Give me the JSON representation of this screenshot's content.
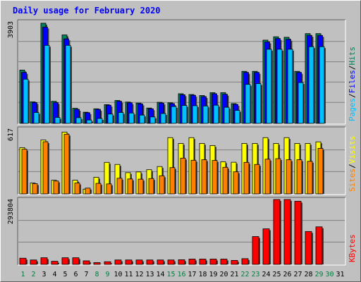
{
  "title": "Daily usage for February 2020",
  "colors": {
    "title": "#0000ff",
    "background": "#c0c0c0",
    "panel": "#c0c0c0",
    "grid": "#808080",
    "hits": "#00805c",
    "files": "#0000ff",
    "pages": "#00c0ff",
    "visits": "#ffff00",
    "sites": "#ff8000",
    "kbytes": "#ff0000",
    "weekday_label": "#000000",
    "weekend_label": "#008040"
  },
  "chart_data": [
    {
      "type": "bar",
      "panel": "hits-files-pages",
      "y_label_max": "3903",
      "legend": [
        {
          "name": "Pages",
          "color": "#00c0ff"
        },
        {
          "name": "/",
          "color": "#000000"
        },
        {
          "name": "Files",
          "color": "#0000ff"
        },
        {
          "name": "/",
          "color": "#000000"
        },
        {
          "name": "Hits",
          "color": "#00805c"
        }
      ],
      "ylim": [
        0,
        3903
      ],
      "x": [
        1,
        2,
        3,
        4,
        5,
        6,
        7,
        8,
        9,
        10,
        11,
        12,
        13,
        14,
        15,
        16,
        17,
        18,
        19,
        20,
        21,
        22,
        23,
        24,
        25,
        26,
        27,
        28,
        29
      ],
      "series": [
        {
          "name": "Hits",
          "values": [
            2050,
            830,
            3850,
            850,
            3400,
            580,
            430,
            560,
            720,
            880,
            820,
            780,
            590,
            810,
            790,
            1140,
            1110,
            1070,
            1180,
            1180,
            760,
            2000,
            2000,
            3200,
            3330,
            3310,
            2000,
            3450,
            3450
          ]
        },
        {
          "name": "Files",
          "values": [
            1960,
            800,
            3700,
            800,
            3250,
            540,
            410,
            540,
            700,
            850,
            790,
            750,
            560,
            780,
            760,
            1100,
            1080,
            1030,
            1140,
            1120,
            730,
            1960,
            1960,
            3130,
            3260,
            3230,
            1960,
            3380,
            3380
          ]
        },
        {
          "name": "Pages",
          "values": [
            1700,
            420,
            3000,
            230,
            3000,
            220,
            130,
            190,
            360,
            420,
            400,
            320,
            250,
            380,
            650,
            690,
            680,
            670,
            700,
            620,
            500,
            1500,
            1530,
            2850,
            2850,
            2850,
            1570,
            2950,
            2950
          ]
        }
      ]
    },
    {
      "type": "bar",
      "panel": "visits-sites",
      "y_label_max": "617",
      "legend": [
        {
          "name": "Sites",
          "color": "#ff8000"
        },
        {
          "name": "/",
          "color": "#000000"
        },
        {
          "name": "Visits",
          "color": "#ffff00"
        }
      ],
      "ylim": [
        0,
        617
      ],
      "x": [
        1,
        2,
        3,
        4,
        5,
        6,
        7,
        8,
        9,
        10,
        11,
        12,
        13,
        14,
        15,
        16,
        17,
        18,
        19,
        20,
        21,
        22,
        23,
        24,
        25,
        26,
        27,
        28,
        29
      ],
      "series": [
        {
          "name": "Visits",
          "values": [
            440,
            103,
            512,
            130,
            588,
            130,
            45,
            158,
            300,
            280,
            202,
            209,
            230,
            260,
            535,
            480,
            535,
            480,
            460,
            306,
            301,
            480,
            480,
            535,
            480,
            535,
            480,
            480,
            495
          ]
        },
        {
          "name": "Sites",
          "values": [
            425,
            97,
            496,
            122,
            568,
            103,
            55,
            100,
            95,
            149,
            142,
            140,
            146,
            172,
            250,
            340,
            320,
            325,
            318,
            253,
            210,
            300,
            280,
            330,
            335,
            325,
            325,
            310,
            433
          ]
        }
      ]
    },
    {
      "type": "bar",
      "panel": "kbytes",
      "y_label_max": "293804",
      "legend": [
        {
          "name": "KBytes",
          "color": "#ff0000"
        }
      ],
      "ylim": [
        0,
        293804
      ],
      "x": [
        1,
        2,
        3,
        4,
        5,
        6,
        7,
        8,
        9,
        10,
        11,
        12,
        13,
        14,
        15,
        16,
        17,
        18,
        19,
        20,
        21,
        22,
        23,
        24,
        25,
        26,
        27,
        28,
        29
      ],
      "series": [
        {
          "name": "KBytes",
          "values": [
            28000,
            20000,
            30000,
            14000,
            30000,
            30000,
            16000,
            8000,
            12000,
            20000,
            20000,
            20000,
            20000,
            20000,
            20000,
            21000,
            24000,
            24000,
            24000,
            24000,
            18000,
            26000,
            126000,
            161000,
            293804,
            293804,
            286000,
            149000,
            170000
          ]
        }
      ]
    }
  ],
  "x_axis": {
    "labels": [
      "1",
      "2",
      "3",
      "4",
      "5",
      "6",
      "7",
      "8",
      "9",
      "10",
      "11",
      "12",
      "13",
      "14",
      "15",
      "16",
      "17",
      "18",
      "19",
      "20",
      "21",
      "22",
      "23",
      "24",
      "25",
      "26",
      "27",
      "28",
      "29",
      "30",
      "31"
    ],
    "weekend_days": [
      1,
      2,
      8,
      9,
      15,
      16,
      22,
      23,
      29,
      30
    ]
  }
}
